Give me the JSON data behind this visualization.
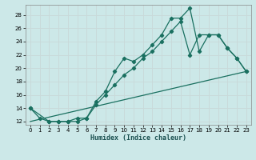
{
  "title": "",
  "xlabel": "Humidex (Indice chaleur)",
  "ylabel": "",
  "bg_color": "#cce8e8",
  "grid_color": "#b0d0d0",
  "line_color": "#1a7060",
  "xlim": [
    -0.5,
    23.5
  ],
  "ylim": [
    11.5,
    29.5
  ],
  "xticks": [
    0,
    1,
    2,
    3,
    4,
    5,
    6,
    7,
    8,
    9,
    10,
    11,
    12,
    13,
    14,
    15,
    16,
    17,
    18,
    19,
    20,
    21,
    22,
    23
  ],
  "yticks": [
    12,
    14,
    16,
    18,
    20,
    22,
    24,
    26,
    28
  ],
  "line1_x": [
    0,
    1,
    2,
    3,
    4,
    5,
    6,
    7,
    8,
    9,
    10,
    11,
    12,
    13,
    14,
    15,
    16,
    17,
    18,
    19,
    20,
    21,
    22,
    23
  ],
  "line1_y": [
    14,
    12.5,
    12,
    12,
    12,
    12.5,
    12.5,
    15,
    16.5,
    19.5,
    21.5,
    21,
    22,
    23.5,
    25,
    27.5,
    27.5,
    29,
    22.5,
    25,
    25,
    23,
    21.5,
    19.5
  ],
  "line2_x": [
    0,
    2,
    3,
    4,
    5,
    6,
    7,
    8,
    9,
    10,
    11,
    12,
    13,
    14,
    15,
    16,
    17,
    18,
    19,
    20,
    21,
    22,
    23
  ],
  "line2_y": [
    14,
    12,
    12,
    12,
    12,
    12.5,
    14.5,
    16,
    17.5,
    19,
    20,
    21.5,
    22.5,
    24,
    25.5,
    27,
    22,
    25,
    25,
    25,
    23,
    21.5,
    19.5
  ],
  "line3_x": [
    0,
    23
  ],
  "line3_y": [
    12,
    19.5
  ]
}
